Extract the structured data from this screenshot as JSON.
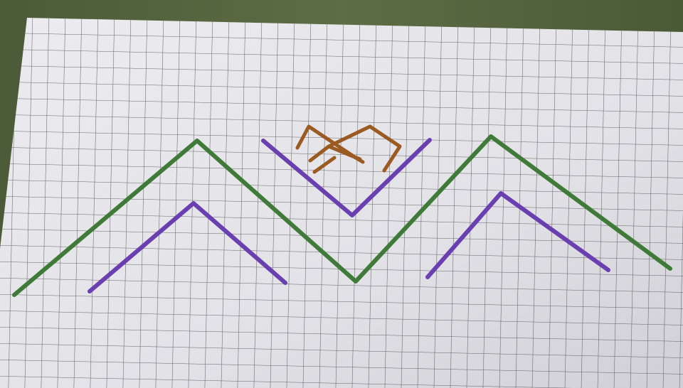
{
  "photo": {
    "subject": "hand-drawn-zigzag-pattern-on-grid-paper",
    "colors": {
      "fabric": "#55663f",
      "fabric_dark": "#3a4a2c",
      "paper": "#e6e6ea",
      "paper_shadow": "#c9c9cf",
      "grid_line": "#3a3a3f",
      "green_stroke": "#3f7a38",
      "purple_stroke": "#6a3fb0",
      "brown_stroke": "#9a5a22"
    }
  }
}
